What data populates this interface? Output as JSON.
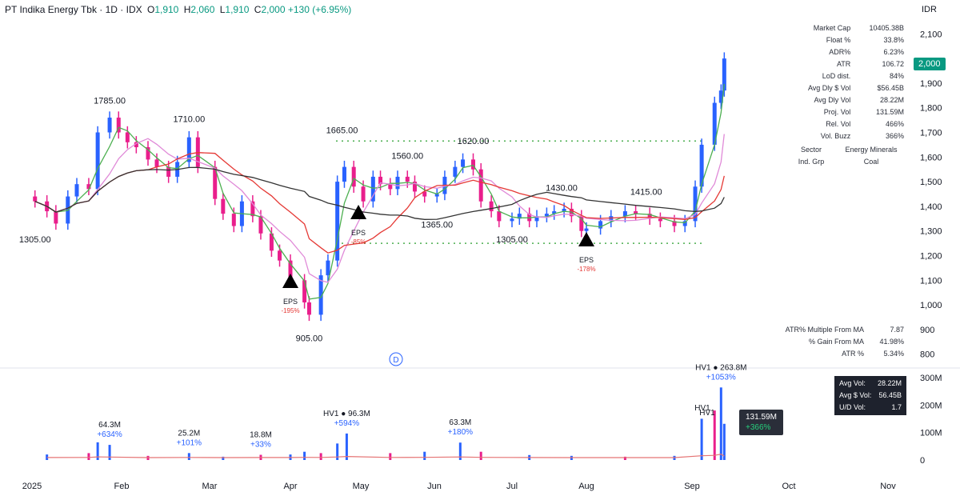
{
  "header": {
    "symbol_line": "PT Indika Energy Tbk · 1D · IDX",
    "o_label": "O",
    "o_value": "1,910",
    "h_label": "H",
    "h_value": "2,060",
    "l_label": "L",
    "l_value": "1,910",
    "c_label": "C",
    "c_value": "2,000",
    "change": "+130 (+6.95%)"
  },
  "currency": "IDR",
  "last_price_tag": "2,000",
  "stats": [
    {
      "label": "Market Cap",
      "value": "10405.38B"
    },
    {
      "label": "Float %",
      "value": "33.8%"
    },
    {
      "label": "ADR%",
      "value": "6.23%"
    },
    {
      "label": "ATR",
      "value": "106.72"
    },
    {
      "label": "LoD dist.",
      "value": "84%"
    },
    {
      "label": "Avg Dly $ Vol",
      "value": "$56.45B"
    },
    {
      "label": "Avg Dly Vol",
      "value": "28.22M"
    },
    {
      "label": "Proj. Vol",
      "value": "131.59M"
    },
    {
      "label": "Rel. Vol",
      "value": "466%"
    },
    {
      "label": "Vol. Buzz",
      "value": "366%"
    }
  ],
  "sector": {
    "sector_label": "Sector",
    "sector_value": "Energy Minerals",
    "grp_label": "Ind. Grp",
    "grp_value": "Coal"
  },
  "stats2": [
    {
      "label": "ATR% Multiple From MA",
      "value": "7.87"
    },
    {
      "label": "% Gain From MA",
      "value": "41.98%"
    },
    {
      "label": "ATR %",
      "value": "5.34%"
    }
  ],
  "volbox": [
    {
      "label": "Avg Vol:",
      "value": "28.22M"
    },
    {
      "label": "Avg $ Vol:",
      "value": "56.45B"
    },
    {
      "label": "U/D Vol:",
      "value": "1.7"
    }
  ],
  "current_volume": {
    "value": "131.59M",
    "pct": "+366%"
  },
  "colors": {
    "up": "#2962ff",
    "down": "#e91e8c",
    "ma_fast": "#4caf50",
    "ma_pink": "#e08ad8",
    "ma_red": "#e53935",
    "ma_black": "#333333",
    "dotted": "#4caf50",
    "volma": "#e57373"
  },
  "chart_data": {
    "type": "candlestick",
    "price_axis": {
      "ticks": [
        "2,100",
        "1,900",
        "1,800",
        "1,700",
        "1,600",
        "1,500",
        "1,400",
        "1,300",
        "1,200",
        "1,100",
        "1,000",
        "900",
        "800"
      ],
      "ylim": [
        760,
        2140
      ]
    },
    "volume_axis": {
      "ticks": [
        "300M",
        "200M",
        "100M",
        "0"
      ],
      "ylim": [
        0,
        320
      ]
    },
    "x_labels": [
      "2025",
      "Feb",
      "Mar",
      "Apr",
      "May",
      "Jun",
      "Jul",
      "Aug",
      "Sep",
      "Oct",
      "Nov"
    ],
    "price_labels": [
      {
        "text": "1305.00",
        "x": "Jan 2",
        "y": 1305,
        "pos": "below"
      },
      {
        "text": "1785.00",
        "x": "Jan 27",
        "y": 1785,
        "pos": "above"
      },
      {
        "text": "1710.00",
        "x": "Feb 24",
        "y": 1710,
        "pos": "above"
      },
      {
        "text": "905.00",
        "x": "Apr 9",
        "y": 905,
        "pos": "below"
      },
      {
        "text": "1665.00",
        "x": "Apr 23",
        "y": 1665,
        "pos": "above"
      },
      {
        "text": "1560.00",
        "x": "May 20",
        "y": 1560,
        "pos": "above"
      },
      {
        "text": "1365.00",
        "x": "Jun 2",
        "y": 1365,
        "pos": "below"
      },
      {
        "text": "1620.00",
        "x": "Jun 16",
        "y": 1620,
        "pos": "above"
      },
      {
        "text": "1305.00",
        "x": "Jul 1",
        "y": 1305,
        "pos": "below"
      },
      {
        "text": "1430.00",
        "x": "Jul 21",
        "y": 1430,
        "pos": "above"
      },
      {
        "text": "1415.00",
        "x": "Aug 18",
        "y": 1415,
        "pos": "above"
      }
    ],
    "levels": [
      {
        "name": "resistance",
        "y": 1665
      },
      {
        "name": "support",
        "y": 1250
      }
    ],
    "eps_markers": [
      {
        "x": "Mar 31",
        "label": "EPS",
        "pct": "-195%"
      },
      {
        "x": "Apr 30",
        "label": "EPS",
        "pct": "-85%"
      },
      {
        "x": "Jul 31",
        "label": "EPS",
        "pct": "-178%"
      }
    ],
    "volume_labels": [
      {
        "x": "Jan 27",
        "line1": "64.3M",
        "line2": "+634%"
      },
      {
        "x": "Feb 24",
        "line1": "25.2M",
        "line2": "+101%"
      },
      {
        "x": "Mar 20",
        "line1": "18.8M",
        "line2": "+33%"
      },
      {
        "x": "Apr 25",
        "line1": "HV1 ● 96.3M",
        "line2": "+594%"
      },
      {
        "x": "Jun 11",
        "line1": "63.3M",
        "line2": "+180%"
      },
      {
        "x": "Sep 10",
        "line1": "HV1 ● 263.8M",
        "line2": "+1053%"
      }
    ],
    "hv_markers": [
      "HV1",
      "HV1"
    ],
    "dividend_marker": "D",
    "close_points": [
      [
        "Jan 2",
        1420
      ],
      [
        "Jan 6",
        1380
      ],
      [
        "Jan 9",
        1330
      ],
      [
        "Jan 13",
        1440
      ],
      [
        "Jan 16",
        1490
      ],
      [
        "Jan 20",
        1470
      ],
      [
        "Jan 23",
        1700
      ],
      [
        "Jan 27",
        1760
      ],
      [
        "Jan 30",
        1700
      ],
      [
        "Feb 3",
        1660
      ],
      [
        "Feb 6",
        1640
      ],
      [
        "Feb 10",
        1590
      ],
      [
        "Feb 13",
        1560
      ],
      [
        "Feb 17",
        1520
      ],
      [
        "Feb 20",
        1580
      ],
      [
        "Feb 24",
        1680
      ],
      [
        "Feb 27",
        1560
      ],
      [
        "Mar 3",
        1430
      ],
      [
        "Mar 6",
        1370
      ],
      [
        "Mar 10",
        1320
      ],
      [
        "Mar 13",
        1420
      ],
      [
        "Mar 17",
        1360
      ],
      [
        "Mar 20",
        1290
      ],
      [
        "Mar 24",
        1220
      ],
      [
        "Mar 27",
        1180
      ],
      [
        "Apr 1",
        1100
      ],
      [
        "Apr 7",
        1010
      ],
      [
        "Apr 9",
        960
      ],
      [
        "Apr 14",
        1120
      ],
      [
        "Apr 17",
        1180
      ],
      [
        "Apr 21",
        1500
      ],
      [
        "Apr 24",
        1560
      ],
      [
        "Apr 28",
        1480
      ],
      [
        "May 2",
        1420
      ],
      [
        "May 6",
        1520
      ],
      [
        "May 9",
        1490
      ],
      [
        "May 13",
        1470
      ],
      [
        "May 16",
        1520
      ],
      [
        "May 20",
        1500
      ],
      [
        "May 23",
        1460
      ],
      [
        "May 27",
        1440
      ],
      [
        "Jun 2",
        1450
      ],
      [
        "Jun 5",
        1520
      ],
      [
        "Jun 9",
        1560
      ],
      [
        "Jun 12",
        1590
      ],
      [
        "Jun 16",
        1550
      ],
      [
        "Jun 19",
        1420
      ],
      [
        "Jun 23",
        1380
      ],
      [
        "Jun 26",
        1340
      ],
      [
        "Jul 1",
        1350
      ],
      [
        "Jul 4",
        1370
      ],
      [
        "Jul 8",
        1340
      ],
      [
        "Jul 11",
        1360
      ],
      [
        "Jul 15",
        1370
      ],
      [
        "Jul 18",
        1380
      ],
      [
        "Jul 22",
        1390
      ],
      [
        "Jul 25",
        1360
      ],
      [
        "Jul 29",
        1300
      ],
      [
        "Aug 1",
        1310
      ],
      [
        "Aug 5",
        1340
      ],
      [
        "Aug 8",
        1360
      ],
      [
        "Aug 12",
        1380
      ],
      [
        "Aug 15",
        1370
      ],
      [
        "Aug 19",
        1350
      ],
      [
        "Aug 22",
        1340
      ],
      [
        "Aug 26",
        1320
      ],
      [
        "Aug 29",
        1340
      ],
      [
        "Sep 2",
        1480
      ],
      [
        "Sep 4",
        1650
      ],
      [
        "Sep 8",
        1820
      ],
      [
        "Sep 10",
        1870
      ],
      [
        "Sep 11",
        2000
      ]
    ],
    "volume_points": [
      [
        "Jan 6",
        20
      ],
      [
        "Jan 20",
        25
      ],
      [
        "Jan 23",
        64.3
      ],
      [
        "Jan 27",
        55
      ],
      [
        "Feb 10",
        15
      ],
      [
        "Feb 24",
        25.2
      ],
      [
        "Mar 6",
        12
      ],
      [
        "Mar 20",
        18.8
      ],
      [
        "Apr 1",
        20
      ],
      [
        "Apr 7",
        30
      ],
      [
        "Apr 14",
        25
      ],
      [
        "Apr 21",
        60
      ],
      [
        "Apr 25",
        96.3
      ],
      [
        "May 13",
        25
      ],
      [
        "May 27",
        30
      ],
      [
        "Jun 11",
        63.3
      ],
      [
        "Jun 19",
        30
      ],
      [
        "Jul 8",
        18
      ],
      [
        "Jul 25",
        15
      ],
      [
        "Aug 12",
        12
      ],
      [
        "Aug 26",
        15
      ],
      [
        "Sep 4",
        150
      ],
      [
        "Sep 8",
        180
      ],
      [
        "Sep 10",
        263.8
      ],
      [
        "Sep 11",
        131.59
      ]
    ]
  }
}
